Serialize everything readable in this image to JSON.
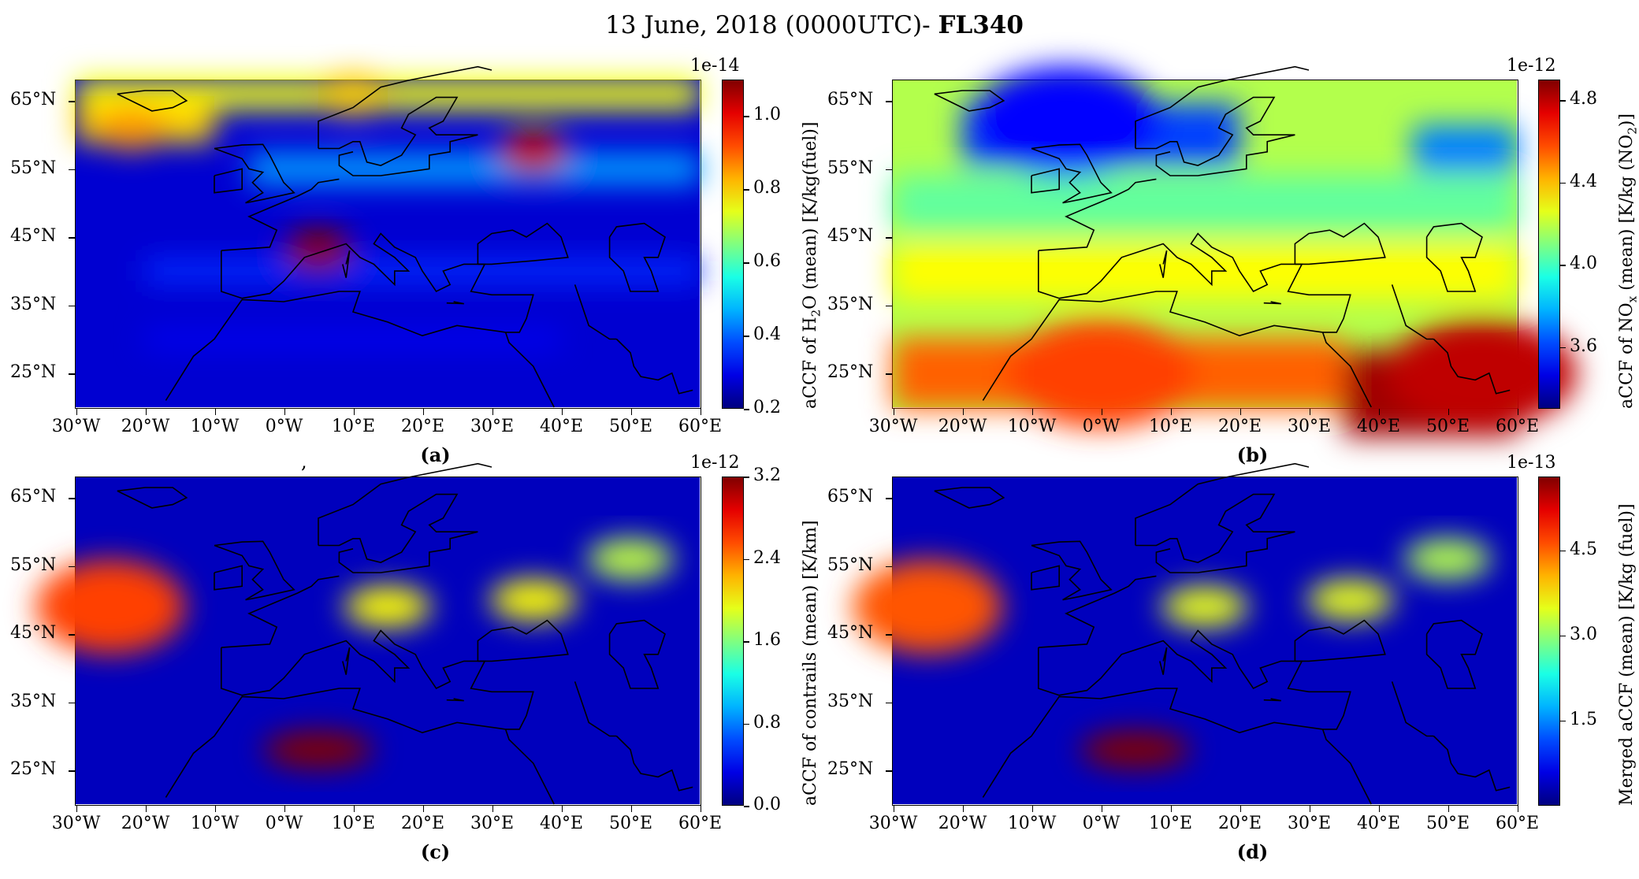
{
  "title": {
    "prefix": "13 June, 2018 (0000UTC)- ",
    "bold": "FL340"
  },
  "axes": {
    "lat_ticks": [
      "65°N",
      "55°N",
      "45°N",
      "35°N",
      "25°N"
    ],
    "lon_ticks": [
      "30°W",
      "20°W",
      "10°W",
      "0°W",
      "10°E",
      "20°E",
      "30°E",
      "40°E",
      "50°E",
      "60°E"
    ],
    "lon_range": [
      -30,
      60
    ],
    "lat_range": [
      20,
      68
    ]
  },
  "panels": [
    {
      "id": "a",
      "caption": "(a)",
      "variable": "aCCF of H2O",
      "colorbar": {
        "label_pre": "aCCF of H",
        "label_sub": "2",
        "label_post": "O (mean) [K/kg(fuel)]",
        "scale": "1e-14",
        "ticks": [
          "1.0",
          "0.8",
          "0.6",
          "0.4",
          "0.2"
        ],
        "tick_values": [
          1.0,
          0.8,
          0.6,
          0.4,
          0.2
        ],
        "range": [
          0.2,
          1.1
        ]
      },
      "background_level": "low",
      "hotspots": [
        {
          "name": "north-atlantic-high",
          "lon": -22,
          "lat": 61,
          "level": 0.85
        },
        {
          "name": "black-sea-east-max",
          "lon": 36,
          "lat": 57.5,
          "level": 1.05
        },
        {
          "name": "gulf-of-lion-max",
          "lon": 5,
          "lat": 43,
          "level": 1.1
        },
        {
          "name": "arctic-band",
          "lon": 10,
          "lat": 66,
          "level": 0.8
        }
      ]
    },
    {
      "id": "b",
      "caption": "(b)",
      "variable": "aCCF of NOx",
      "colorbar": {
        "label_pre": "aCCF of NO",
        "label_sub": "x",
        "label_post": " (mean) [K/kg (NO",
        "label_sub2": "2",
        "label_post2": ")]",
        "scale": "1e-12",
        "ticks": [
          "4.8",
          "4.4",
          "4.0",
          "3.6"
        ],
        "tick_values": [
          4.8,
          4.4,
          4.0,
          3.6
        ],
        "range": [
          3.3,
          4.9
        ]
      },
      "background_level": "mid",
      "hotspots": [
        {
          "name": "arabia-max",
          "lon": 55,
          "lat": 25,
          "level": 4.8
        },
        {
          "name": "sahara-high",
          "lon": 0,
          "lat": 25,
          "level": 4.6
        },
        {
          "name": "north-atlantic-low",
          "lon": -5,
          "lat": 62,
          "level": 3.5
        }
      ]
    },
    {
      "id": "c",
      "caption": "(c)",
      "variable": "aCCF of contrails",
      "colorbar": {
        "label_pre": "aCCF of contrails (mean) [K/km]",
        "scale": "1e-12",
        "ticks": [
          "3.2",
          "2.4",
          "1.6",
          "0.8",
          "0.0"
        ],
        "tick_values": [
          3.2,
          2.4,
          1.6,
          0.8,
          0.0
        ],
        "range": [
          0.0,
          3.2
        ]
      },
      "background_level": "zero",
      "hotspots": [
        {
          "name": "atlantic-plume",
          "lon": -25,
          "lat": 49,
          "level": 2.6
        },
        {
          "name": "sahara-plume",
          "lon": 5,
          "lat": 28,
          "level": 3.2
        },
        {
          "name": "alps-plume",
          "lon": 15,
          "lat": 49,
          "level": 2.0
        },
        {
          "name": "black-sea-plume",
          "lon": 36,
          "lat": 50,
          "level": 2.0
        },
        {
          "name": "caspian-plume",
          "lon": 50,
          "lat": 56,
          "level": 1.8
        }
      ]
    },
    {
      "id": "d",
      "caption": "(d)",
      "variable": "Merged aCCF",
      "colorbar": {
        "label_pre": "Merged aCCF (mean) [K/kg (fuel)]",
        "scale": "1e-13",
        "ticks": [
          "4.5",
          "3.0",
          "1.5"
        ],
        "tick_values": [
          4.5,
          3.0,
          1.5
        ],
        "range": [
          0.0,
          5.8
        ]
      },
      "background_level": "zero",
      "hotspots": [
        {
          "name": "atlantic-plume",
          "lon": -25,
          "lat": 49,
          "level": 4.6
        },
        {
          "name": "sahara-plume",
          "lon": 5,
          "lat": 28,
          "level": 5.8
        },
        {
          "name": "alps-plume",
          "lon": 15,
          "lat": 49,
          "level": 3.5
        },
        {
          "name": "black-sea-plume",
          "lon": 36,
          "lat": 50,
          "level": 3.5
        },
        {
          "name": "caspian-plume",
          "lon": 50,
          "lat": 56,
          "level": 3.2
        }
      ]
    }
  ],
  "stray_mark": ","
}
